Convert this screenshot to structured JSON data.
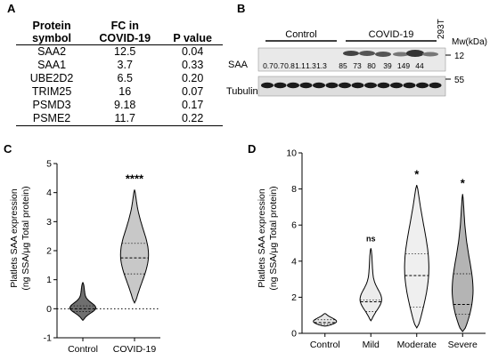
{
  "panel_labels": {
    "a": "A",
    "b": "B",
    "c": "C",
    "d": "D"
  },
  "table": {
    "headers": [
      "Protein symbol",
      "FC in COVID-19",
      "P value"
    ],
    "rows": [
      [
        "SAA2",
        "12.5",
        "0.04"
      ],
      [
        "SAA1",
        "3.7",
        "0.33"
      ],
      [
        "UBE2D2",
        "6.5",
        "0.20"
      ],
      [
        "TRIM25",
        "16",
        "0.07"
      ],
      [
        "PSMD3",
        "9.18",
        "0.17"
      ],
      [
        "PSME2",
        "11.7",
        "0.22"
      ]
    ]
  },
  "blot": {
    "group_control": "Control",
    "group_covid": "COVID-19",
    "lane_293t": "293T",
    "mw_label": "Mw(kDa)",
    "row_saa": "SAA",
    "row_tubulin": "Tubulin",
    "mw_12": "12",
    "mw_55": "55",
    "band_values": [
      "0.7",
      "0.7",
      "0.8",
      "1.1",
      "1.3",
      "1.3",
      "85",
      "73",
      "80",
      "39",
      "149",
      "44"
    ]
  },
  "chart_data": [
    {
      "type": "violin",
      "panel": "C",
      "ylabel": "Platlets SAA expression (ng SSA/μg Total protein)",
      "ylabel_lines": [
        "Platlets SAA expression",
        "(ng SSA/μg Total protein)"
      ],
      "categories": [
        "Control",
        "COVID-19"
      ],
      "ylim": [
        -1,
        5
      ],
      "yticks": [
        "-1",
        "0",
        "1",
        "2",
        "3",
        "4",
        "5"
      ],
      "fill_colors": [
        "#6f6f6f",
        "#c8c8c8"
      ],
      "reference_line_y": 0,
      "annotations": [
        "",
        "****"
      ],
      "medians": [
        0.0,
        1.75
      ],
      "quartiles": [
        [
          -0.1,
          0.1
        ],
        [
          1.2,
          2.25
        ]
      ],
      "range": [
        [
          -0.4,
          0.9
        ],
        [
          0.2,
          4.1
        ]
      ]
    },
    {
      "type": "violin",
      "panel": "D",
      "ylabel": "Platlets SAA expression (ng SSA/μg Total protein)",
      "ylabel_lines": [
        "Platlets SAA expression",
        "(ng SSA/μg Total protein)"
      ],
      "categories": [
        "Control",
        "Mild",
        "Moderate",
        "Severe"
      ],
      "ylim": [
        0,
        10
      ],
      "yticks": [
        "0",
        "2",
        "4",
        "6",
        "8",
        "10"
      ],
      "fill_colors": [
        "#e6e6e6",
        "#ececec",
        "#efefef",
        "#b4b4b4"
      ],
      "annotations": [
        "",
        "ns",
        "*",
        "*"
      ],
      "medians": [
        0.6,
        1.75,
        3.2,
        1.6
      ],
      "quartiles": [
        [
          0.5,
          0.75
        ],
        [
          1.2,
          1.85
        ],
        [
          1.45,
          4.4
        ],
        [
          1.05,
          3.3
        ]
      ],
      "range": [
        [
          0.4,
          1.1
        ],
        [
          0.7,
          4.7
        ],
        [
          0.3,
          8.2
        ],
        [
          0.1,
          7.7
        ]
      ]
    }
  ]
}
